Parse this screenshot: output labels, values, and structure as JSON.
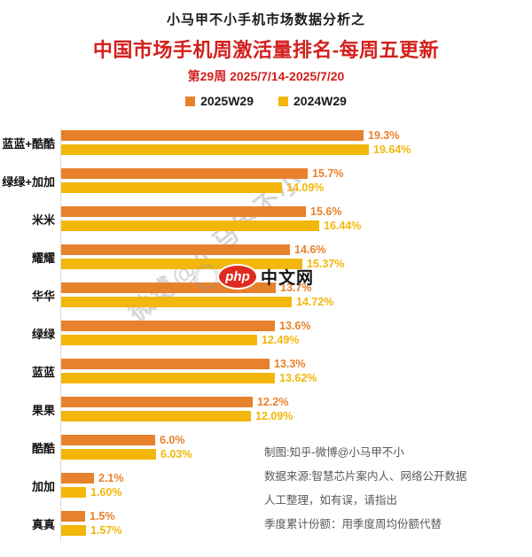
{
  "header": {
    "supertitle": "小马甲不小手机市场数据分析之",
    "title": "中国市场手机周激活量排名-每周五更新",
    "subtitle": "第29周 2025/7/14-2025/7/20",
    "title_color": "#d3201d"
  },
  "legend": [
    {
      "label": "2025W29",
      "color": "#e8812c"
    },
    {
      "label": "2024W29",
      "color": "#f2b70a"
    }
  ],
  "chart_data": {
    "type": "bar",
    "orientation": "horizontal",
    "title": "中国市场手机周激活量排名-每周五更新",
    "subtitle": "第29周 2025/7/14-2025/7/20",
    "categories": [
      "蓝蓝+酷酷",
      "绿绿+加加",
      "米米",
      "耀耀",
      "华华",
      "绿绿",
      "蓝蓝",
      "果果",
      "酷酷",
      "加加",
      "真真"
    ],
    "series": [
      {
        "name": "2025W29",
        "color": "#e8812c",
        "values": [
          19.3,
          15.7,
          15.6,
          14.6,
          13.7,
          13.6,
          13.3,
          12.2,
          6.0,
          2.1,
          1.5
        ],
        "labels": [
          "19.3%",
          "15.7%",
          "15.6%",
          "14.6%",
          "13.7%",
          "13.6%",
          "13.3%",
          "12.2%",
          "6.0%",
          "2.1%",
          "1.5%"
        ]
      },
      {
        "name": "2024W29",
        "color": "#f2b70a",
        "values": [
          19.64,
          14.09,
          16.44,
          15.37,
          14.72,
          12.49,
          13.62,
          12.09,
          6.03,
          1.6,
          1.57
        ],
        "labels": [
          "19.64%",
          "14.09%",
          "16.44%",
          "15.37%",
          "14.72%",
          "12.49%",
          "13.62%",
          "12.09%",
          "6.03%",
          "1.60%",
          "1.57%"
        ]
      }
    ],
    "xlim": [
      0,
      21.2
    ],
    "grid": false,
    "legend_position": "top",
    "value_labels": "outside-end"
  },
  "watermark": {
    "text": "微博@小马甲不小"
  },
  "logo": {
    "badge": "php",
    "text": "中文网"
  },
  "footer": {
    "lines": [
      "制图:知乎-微博@小马甲不小",
      "数据来源:智慧芯片案内人、网络公开数据",
      "人工整理，如有误，请指出",
      "季度累计份额：用季度周均份额代替"
    ]
  }
}
